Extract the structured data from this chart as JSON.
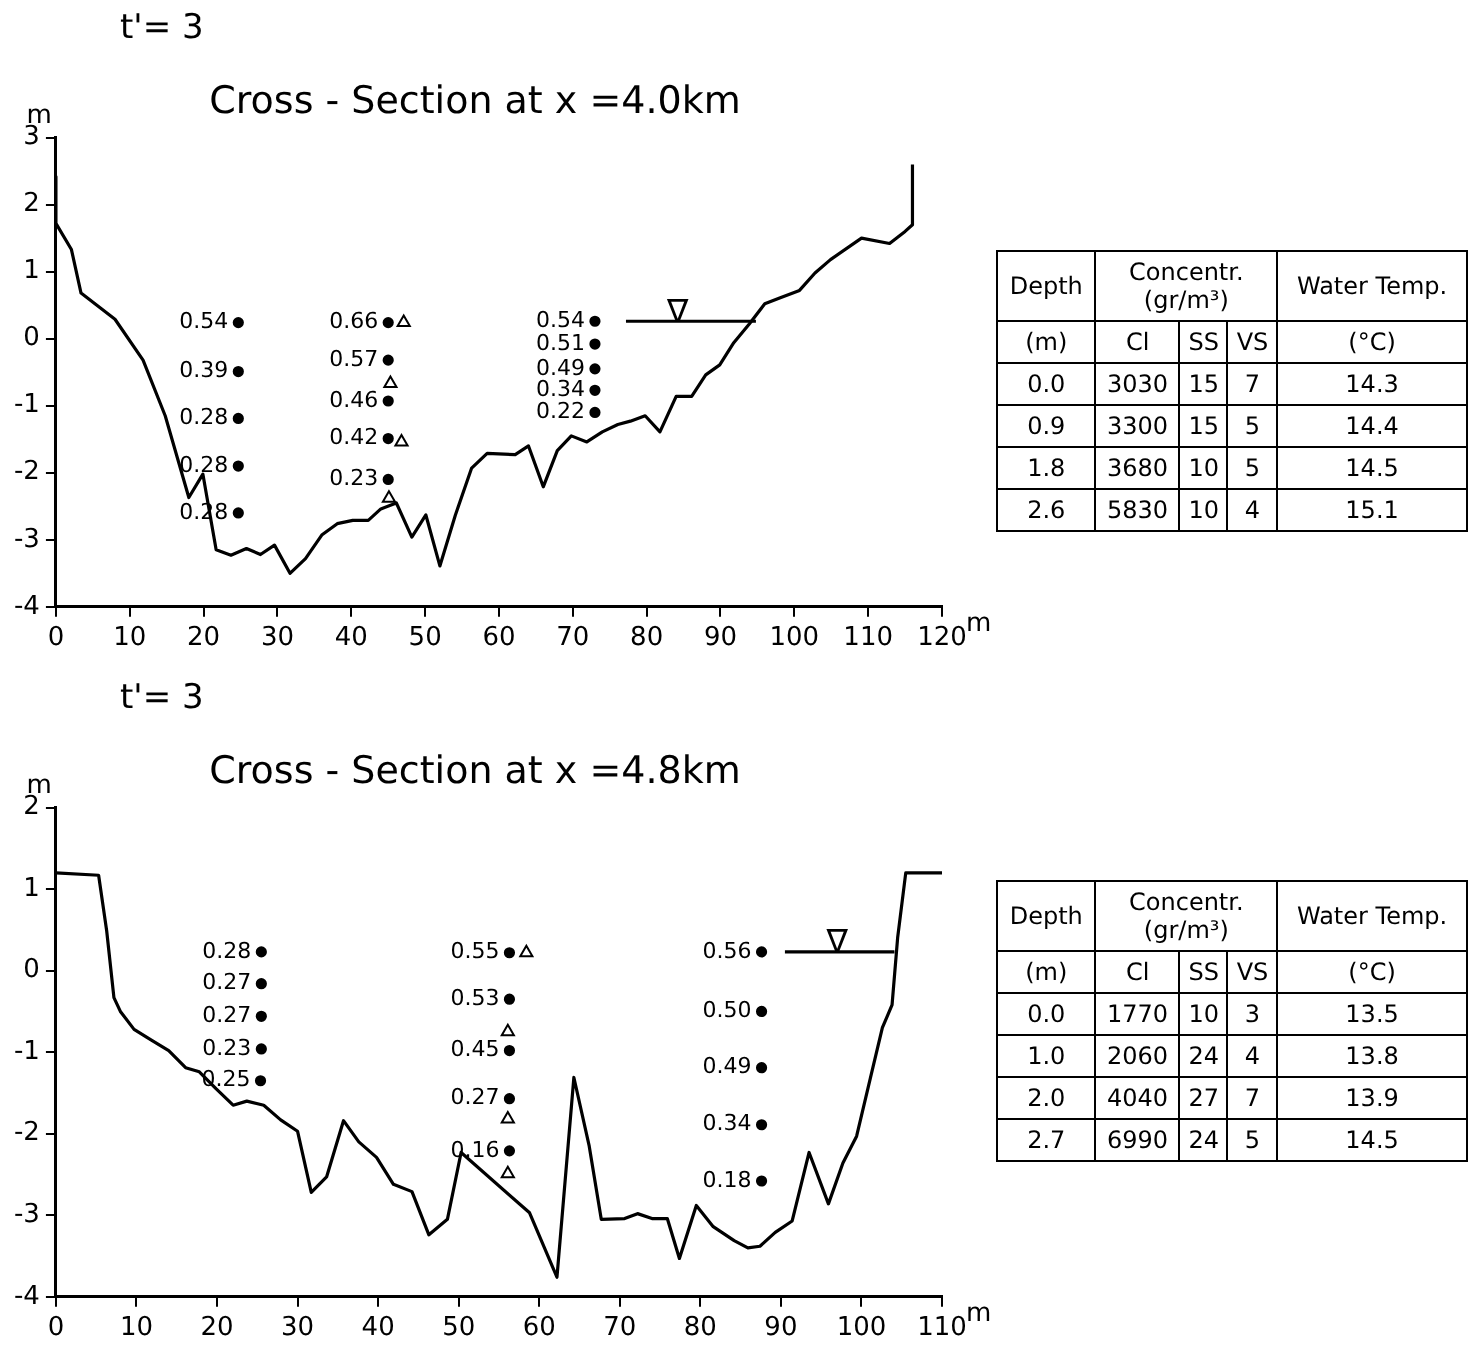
{
  "chart_data": [
    {
      "type": "line",
      "title": "Cross - Section at x =4.0km",
      "xlabel": "m",
      "ylabel": "m",
      "annotations": [
        "t'= 3",
        {
          "text": "∇",
          "x": 84.2,
          "y": 0.26
        },
        {
          "text": "0.54",
          "x": 24.7,
          "y": 0.24
        },
        {
          "text": "0.39",
          "x": 24.7,
          "y": -0.49
        },
        {
          "text": "0.28",
          "x": 24.7,
          "y": -1.19
        },
        {
          "text": "0.28",
          "x": 24.7,
          "y": -1.9
        },
        {
          "text": "0.28",
          "x": 24.7,
          "y": -2.6
        },
        {
          "text": "0.66",
          "x": 45.0,
          "y": 0.24
        },
        {
          "text": "0.57",
          "x": 45.0,
          "y": -0.32
        },
        {
          "text": "0.46",
          "x": 45.0,
          "y": -0.93
        },
        {
          "text": "0.42",
          "x": 45.0,
          "y": -1.49
        },
        {
          "text": "0.23",
          "x": 45.0,
          "y": -2.1
        },
        {
          "text": "0.54",
          "x": 73.0,
          "y": 0.26
        },
        {
          "text": "0.51",
          "x": 73.0,
          "y": -0.08
        },
        {
          "text": "0.49",
          "x": 73.0,
          "y": -0.45
        },
        {
          "text": "0.34",
          "x": 73.0,
          "y": -0.77
        },
        {
          "text": "0.22",
          "x": 73.0,
          "y": -1.1
        }
      ],
      "xlim": [
        0,
        120
      ],
      "xticks": [
        0,
        10,
        20,
        30,
        40,
        50,
        60,
        70,
        80,
        90,
        100,
        110,
        120
      ],
      "ylim": [
        -4,
        3
      ],
      "yticks": [
        -4,
        -3,
        -2,
        -1,
        0,
        1,
        2,
        3
      ],
      "grid": false,
      "legend": false,
      "series": [
        {
          "type": "line",
          "marker": "none",
          "color": "#000000",
          "x": [
            0,
            0,
            2.1,
            3.4,
            8.0,
            11.8,
            14.8,
            18.0,
            19.9,
            21.7,
            23.7,
            25.8,
            27.7,
            29.6,
            31.7,
            33.8,
            36.0,
            38.1,
            40.2,
            42.3,
            44.0,
            46.1,
            48.2,
            50.1,
            52.0,
            54.1,
            56.3,
            58.4,
            62.2,
            64.0,
            66.0,
            67.9,
            69.8,
            71.9,
            74.0,
            76.1,
            77.8,
            79.8,
            81.8,
            84.0,
            86.1,
            88.0,
            89.9,
            91.8,
            93.9,
            96.0,
            98.1,
            100.7,
            102.8,
            104.9,
            109.1,
            112.9,
            115,
            116,
            116
          ],
          "values": [
            2.42,
            1.72,
            1.33,
            0.68,
            0.29,
            -0.32,
            -1.15,
            -2.37,
            -2.02,
            -3.15,
            -3.23,
            -3.13,
            -3.22,
            -3.08,
            -3.5,
            -3.28,
            -2.93,
            -2.76,
            -2.71,
            -2.71,
            -2.54,
            -2.45,
            -2.96,
            -2.63,
            -3.39,
            -2.63,
            -1.93,
            -1.71,
            -1.73,
            -1.6,
            -2.21,
            -1.67,
            -1.45,
            -1.54,
            -1.39,
            -1.28,
            -1.23,
            -1.15,
            -1.39,
            -0.86,
            -0.86,
            -0.54,
            -0.39,
            -0.06,
            0.22,
            0.52,
            0.61,
            0.72,
            0.98,
            1.18,
            1.5,
            1.42,
            1.6,
            1.7,
            2.6
          ]
        },
        {
          "type": "scatter",
          "marker": "circle",
          "color": "#000000",
          "x": [
            24.7,
            24.7,
            24.7,
            24.7,
            24.7,
            45.0,
            45.0,
            45.0,
            45.0,
            45.0,
            73.0,
            73.0,
            73.0,
            73.0,
            73.0
          ],
          "values": [
            0.24,
            -0.49,
            -1.19,
            -1.9,
            -2.6,
            0.24,
            -0.32,
            -0.93,
            -1.49,
            -2.1,
            0.26,
            -0.08,
            -0.45,
            -0.77,
            -1.1
          ]
        },
        {
          "type": "scatter",
          "marker": "triangle",
          "color": "#000000",
          "x": [
            47.1,
            45.3,
            46.8,
            45.1
          ],
          "values": [
            0.24,
            -0.67,
            -1.54,
            -2.38
          ]
        },
        {
          "type": "line",
          "marker": "none",
          "color": "#000000",
          "x": [
            77.2,
            84.2,
            94.8
          ],
          "values": [
            0.26,
            0.26,
            0.26
          ]
        }
      ]
    },
    {
      "type": "other",
      "annotations": [
        "Depth",
        "(m)",
        "Concentr.",
        "(gr/m³)",
        "Water Temp.",
        "(°C)"
      ],
      "categories": [
        "Cl",
        "SS",
        "VS"
      ],
      "cell_labels": [
        [
          "0.0",
          "3030",
          "15",
          "7",
          "14.3"
        ],
        [
          "0.9",
          "3300",
          "15",
          "5",
          "14.4"
        ],
        [
          "1.8",
          "3680",
          "10",
          "5",
          "14.5"
        ],
        [
          "2.6",
          "5830",
          "10",
          "4",
          "15.1"
        ]
      ]
    },
    {
      "type": "line",
      "title": "Cross - Section at x =4.8km",
      "xlabel": "m",
      "ylabel": "m",
      "annotations": [
        "t'= 3",
        {
          "text": "∇",
          "x": 97.0,
          "y": 0.23
        },
        {
          "text": "0.28",
          "x": 25.5,
          "y": 0.23
        },
        {
          "text": "0.27",
          "x": 25.5,
          "y": -0.16
        },
        {
          "text": "0.27",
          "x": 25.5,
          "y": -0.56
        },
        {
          "text": "0.23",
          "x": 25.5,
          "y": -0.96
        },
        {
          "text": "0.25",
          "x": 25.4,
          "y": -1.35
        },
        {
          "text": "0.55",
          "x": 56.3,
          "y": 0.22
        },
        {
          "text": "0.53",
          "x": 56.3,
          "y": -0.35
        },
        {
          "text": "0.45",
          "x": 56.3,
          "y": -0.98
        },
        {
          "text": "0.27",
          "x": 56.3,
          "y": -1.57
        },
        {
          "text": "0.16",
          "x": 56.3,
          "y": -2.21
        },
        {
          "text": "0.56",
          "x": 87.6,
          "y": 0.23
        },
        {
          "text": "0.50",
          "x": 87.6,
          "y": -0.5
        },
        {
          "text": "0.49",
          "x": 87.6,
          "y": -1.19
        },
        {
          "text": "0.34",
          "x": 87.6,
          "y": -1.89
        },
        {
          "text": "0.18",
          "x": 87.6,
          "y": -2.58
        }
      ],
      "xlim": [
        0,
        110
      ],
      "xticks": [
        0,
        10,
        20,
        30,
        40,
        50,
        60,
        70,
        80,
        90,
        100,
        110
      ],
      "ylim": [
        -4,
        2
      ],
      "yticks": [
        -4,
        -3,
        -2,
        -1,
        0,
        1,
        2
      ],
      "grid": false,
      "legend": false,
      "series": [
        {
          "type": "line",
          "marker": "none",
          "color": "#000000",
          "x": [
            0,
            5.3,
            6.3,
            7.2,
            8.0,
            9.7,
            11.8,
            14.0,
            16.1,
            17.8,
            19.9,
            22.0,
            23.7,
            25.8,
            27.9,
            30.0,
            31.7,
            33.6,
            35.7,
            37.6,
            39.8,
            41.9,
            44.2,
            46.3,
            48.6,
            50.3,
            58.8,
            62.2,
            64.3,
            66.2,
            67.7,
            70.6,
            72.2,
            74.0,
            75.9,
            77.4,
            79.5,
            81.6,
            84.2,
            85.9,
            87.4,
            89.3,
            91.4,
            93.5,
            95.9,
            97.7,
            99.4,
            101.1,
            102.6,
            103.8,
            104.5,
            105.5,
            110
          ],
          "values": [
            1.2,
            1.17,
            0.49,
            -0.33,
            -0.5,
            -0.72,
            -0.85,
            -0.98,
            -1.19,
            -1.24,
            -1.45,
            -1.65,
            -1.6,
            -1.65,
            -1.83,
            -1.97,
            -2.72,
            -2.53,
            -1.84,
            -2.1,
            -2.29,
            -2.62,
            -2.71,
            -3.24,
            -3.05,
            -2.23,
            -2.97,
            -3.76,
            -1.31,
            -2.15,
            -3.05,
            -3.04,
            -2.98,
            -3.04,
            -3.04,
            -3.53,
            -2.88,
            -3.14,
            -3.31,
            -3.4,
            -3.38,
            -3.21,
            -3.07,
            -2.23,
            -2.86,
            -2.36,
            -2.03,
            -1.32,
            -0.7,
            -0.42,
            0.41,
            1.2,
            1.2
          ]
        },
        {
          "type": "scatter",
          "marker": "circle",
          "color": "#000000",
          "x": [
            25.5,
            25.5,
            25.5,
            25.5,
            25.4,
            56.3,
            56.3,
            56.3,
            56.3,
            56.3,
            87.6,
            87.6,
            87.6,
            87.6,
            87.6
          ],
          "values": [
            0.23,
            -0.16,
            -0.56,
            -0.96,
            -1.35,
            0.22,
            -0.35,
            -0.98,
            -1.57,
            -2.21,
            0.23,
            -0.5,
            -1.19,
            -1.89,
            -2.58
          ]
        },
        {
          "type": "scatter",
          "marker": "triangle",
          "color": "#000000",
          "x": [
            58.4,
            56.1,
            56.1,
            56.1
          ],
          "values": [
            0.22,
            -0.75,
            -1.82,
            -2.49
          ]
        },
        {
          "type": "line",
          "marker": "none",
          "color": "#000000",
          "x": [
            90.5,
            97.0,
            104.1
          ],
          "values": [
            0.23,
            0.23,
            0.23
          ]
        }
      ]
    },
    {
      "type": "other",
      "annotations": [
        "Depth",
        "(m)",
        "Concentr.",
        "(gr/m³)",
        "Water Temp.",
        "(°C)"
      ],
      "categories": [
        "Cl",
        "SS",
        "VS"
      ],
      "cell_labels": [
        [
          "0.0",
          "1770",
          "10",
          "3",
          "13.5"
        ],
        [
          "1.0",
          "2060",
          "24",
          "4",
          "13.8"
        ],
        [
          "2.0",
          "4040",
          "27",
          "7",
          "13.9"
        ],
        [
          "2.7",
          "6990",
          "24",
          "5",
          "14.5"
        ]
      ]
    }
  ]
}
